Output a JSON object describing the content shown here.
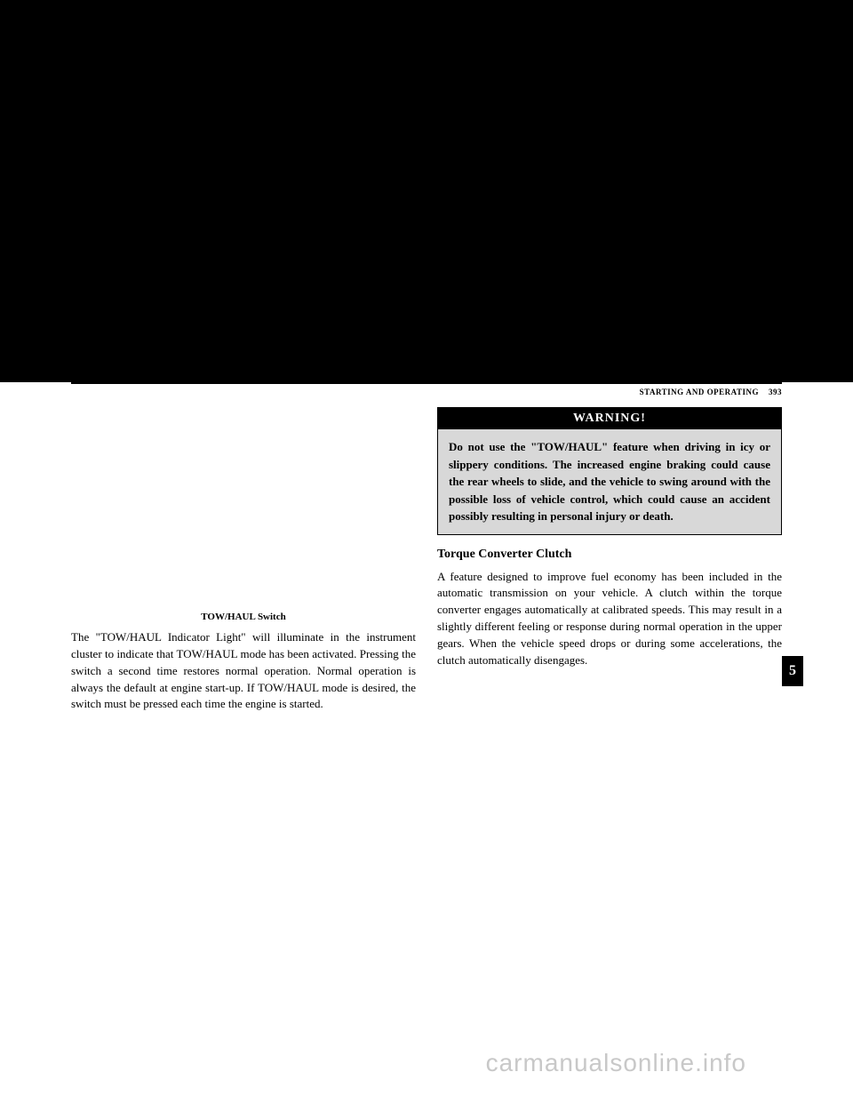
{
  "header": {
    "section_title": "STARTING AND OPERATING",
    "page_number": "393"
  },
  "left_column": {
    "caption": "TOW/HAUL Switch",
    "paragraph": "The \"TOW/HAUL Indicator Light\" will illuminate in the instrument cluster to indicate that TOW/HAUL mode has been activated. Pressing the switch a second time restores normal operation. Normal operation is always the default at engine start-up. If TOW/HAUL mode is desired, the switch must be pressed each time the engine is started."
  },
  "right_column": {
    "warning_label": "WARNING!",
    "warning_text": "Do not use the \"TOW/HAUL\" feature when driving in icy or slippery conditions. The increased engine braking could cause the rear wheels to slide, and the vehicle to swing around with the possible loss of vehicle control, which could cause an accident possibly resulting in personal injury or death.",
    "subheading": "Torque Converter Clutch",
    "paragraph": "A feature designed to improve fuel economy has been included in the automatic transmission on your vehicle. A clutch within the torque converter engages automatically at calibrated speeds. This may result in a slightly different feeling or response during normal operation in the upper gears. When the vehicle speed drops or during some accelerations, the clutch automatically disengages."
  },
  "tab": {
    "number": "5"
  },
  "watermark": "carmanualsonline.info",
  "colors": {
    "black": "#000000",
    "white": "#ffffff",
    "warning_bg": "#d8d8d8",
    "watermark_color": "#c8c8c8"
  }
}
